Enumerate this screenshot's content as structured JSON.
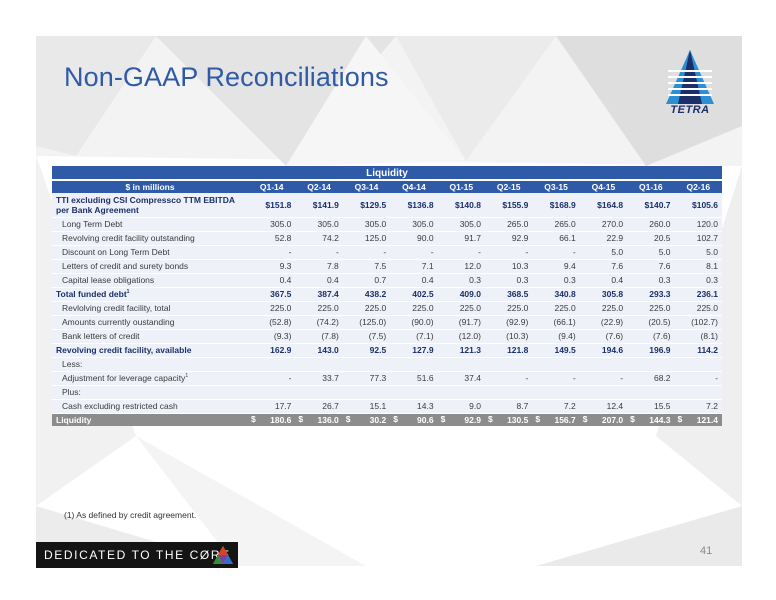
{
  "slide": {
    "title": "Non-GAAP Reconciliations",
    "logo_text": "TETRA",
    "footnote": "(1) As defined by credit agreement.",
    "banner_text": "DEDICATED TO THE CØRE",
    "page_number": "41",
    "colors": {
      "accent": "#2f5aa8",
      "row_bg": "#eef2f8",
      "total_bg": "#8c8c8c",
      "navy": "#1b2f6b"
    }
  },
  "table": {
    "section_title": "Liquidity",
    "units_label": "$ in millions",
    "quarters": [
      "Q1-14",
      "Q2-14",
      "Q3-14",
      "Q4-14",
      "Q1-15",
      "Q2-15",
      "Q3-15",
      "Q4-15",
      "Q1-16",
      "Q2-16"
    ],
    "rows": [
      {
        "label": "TTI excluding CSI Compressco TTM EBITDA per Bank Agreement",
        "style": "tall-bold",
        "values": [
          "$151.8",
          "$141.9",
          "$129.5",
          "$136.8",
          "$140.8",
          "$155.9",
          "$168.9",
          "$164.8",
          "$140.7",
          "$105.6"
        ]
      },
      {
        "label": "Long Term Debt",
        "style": "indent",
        "values": [
          "305.0",
          "305.0",
          "305.0",
          "305.0",
          "305.0",
          "265.0",
          "265.0",
          "270.0",
          "260.0",
          "120.0"
        ]
      },
      {
        "label": "Revolving credit facility outstanding",
        "style": "indent",
        "values": [
          "52.8",
          "74.2",
          "125.0",
          "90.0",
          "91.7",
          "92.9",
          "66.1",
          "22.9",
          "20.5",
          "102.7"
        ]
      },
      {
        "label": "Discount on Long Term Debt",
        "style": "indent",
        "values": [
          "-",
          "-",
          "-",
          "-",
          "-",
          "-",
          "-",
          "5.0",
          "5.0",
          "5.0"
        ]
      },
      {
        "label": "Letters of credit and surety bonds",
        "style": "indent",
        "values": [
          "9.3",
          "7.8",
          "7.5",
          "7.1",
          "12.0",
          "10.3",
          "9.4",
          "7.6",
          "7.6",
          "8.1"
        ]
      },
      {
        "label": "Capital lease obligations",
        "style": "indent",
        "values": [
          "0.4",
          "0.4",
          "0.7",
          "0.4",
          "0.3",
          "0.3",
          "0.3",
          "0.4",
          "0.3",
          "0.3"
        ]
      },
      {
        "label": "Total funded debt",
        "sup": "1",
        "style": "bold-topline",
        "values": [
          "367.5",
          "387.4",
          "438.2",
          "402.5",
          "409.0",
          "368.5",
          "340.8",
          "305.8",
          "293.3",
          "236.1"
        ]
      },
      {
        "label": "Revlolving credit facility, total",
        "style": "indent",
        "values": [
          "225.0",
          "225.0",
          "225.0",
          "225.0",
          "225.0",
          "225.0",
          "225.0",
          "225.0",
          "225.0",
          "225.0"
        ]
      },
      {
        "label": "Amounts currently oustanding",
        "style": "indent",
        "values": [
          "(52.8)",
          "(74.2)",
          "(125.0)",
          "(90.0)",
          "(91.7)",
          "(92.9)",
          "(66.1)",
          "(22.9)",
          "(20.5)",
          "(102.7)"
        ]
      },
      {
        "label": "Bank letters of credit",
        "style": "indent",
        "values": [
          "(9.3)",
          "(7.8)",
          "(7.5)",
          "(7.1)",
          "(12.0)",
          "(10.3)",
          "(9.4)",
          "(7.6)",
          "(7.6)",
          "(8.1)"
        ]
      },
      {
        "label": "Revolving credit facility, available",
        "style": "bold-topline",
        "values": [
          "162.9",
          "143.0",
          "92.5",
          "127.9",
          "121.3",
          "121.8",
          "149.5",
          "194.6",
          "196.9",
          "114.2"
        ]
      },
      {
        "label": "Less:",
        "style": "indent",
        "values": [
          "",
          "",
          "",
          "",
          "",
          "",
          "",
          "",
          "",
          ""
        ]
      },
      {
        "label": "Adjustment for leverage capacity",
        "sup": "1",
        "style": "indent",
        "values": [
          "-",
          "33.7",
          "77.3",
          "51.6",
          "37.4",
          "-",
          "-",
          "-",
          "68.2",
          "-"
        ]
      },
      {
        "label": "Plus:",
        "style": "indent",
        "values": [
          "",
          "",
          "",
          "",
          "",
          "",
          "",
          "",
          "",
          ""
        ]
      },
      {
        "label": "Cash excluding restricted cash",
        "style": "indent",
        "values": [
          "17.7",
          "26.7",
          "15.1",
          "14.3",
          "9.0",
          "8.7",
          "7.2",
          "12.4",
          "15.5",
          "7.2"
        ]
      }
    ],
    "total": {
      "label": "Liquidity",
      "currency": "$",
      "values": [
        "180.6",
        "136.0",
        "30.2",
        "90.6",
        "92.9",
        "130.5",
        "156.7",
        "207.0",
        "144.3",
        "121.4"
      ]
    }
  }
}
